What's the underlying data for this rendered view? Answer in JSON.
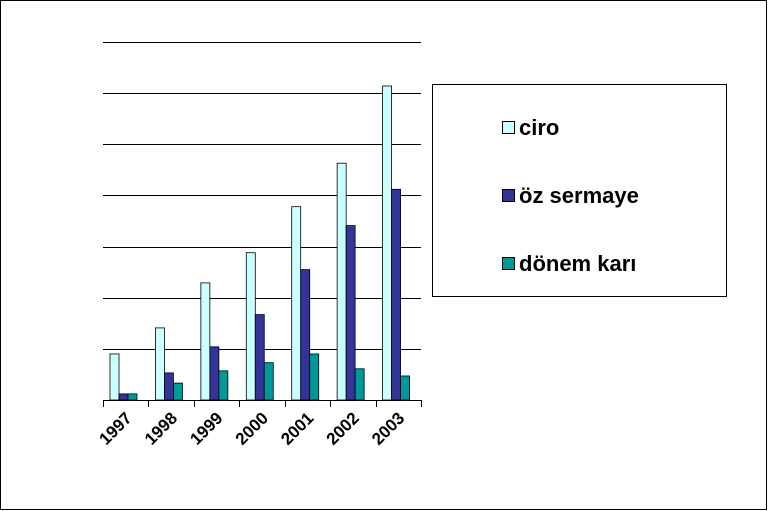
{
  "chart_data": {
    "type": "bar",
    "categories": [
      "1997",
      "1998",
      "1999",
      "2000",
      "2001",
      "2002",
      "2003"
    ],
    "series": [
      {
        "name": "ciro",
        "color": "#ccffff",
        "values": [
          0.9,
          1.41,
          2.29,
          2.88,
          3.78,
          4.63,
          6.14
        ]
      },
      {
        "name": "öz sermaye",
        "color": "#333399",
        "values": [
          0.12,
          0.53,
          1.04,
          1.67,
          2.55,
          3.41,
          4.12
        ]
      },
      {
        "name": "dönem karı",
        "color": "#009999",
        "values": [
          0.12,
          0.33,
          0.57,
          0.73,
          0.9,
          0.61,
          0.47
        ]
      }
    ],
    "ylim": [
      0,
      7
    ],
    "yticks": [
      0,
      1,
      2,
      3,
      4,
      5,
      6,
      7
    ],
    "grid": true,
    "legend": "right"
  }
}
